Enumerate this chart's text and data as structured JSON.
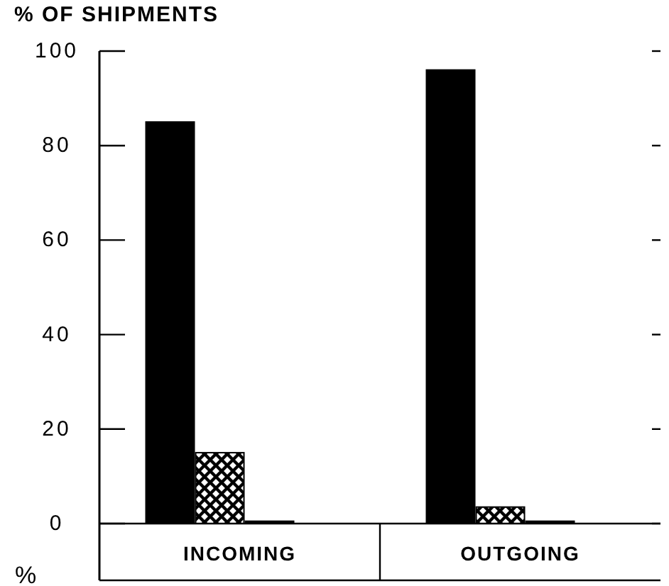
{
  "chart_data": {
    "type": "bar",
    "title": "% OF SHIPMENTS",
    "categories": [
      "INCOMING",
      "OUTGOING"
    ],
    "series": [
      {
        "color": "#000000",
        "values": [
          85,
          96
        ]
      },
      {
        "color": "#000000",
        "values": [
          15,
          3.5
        ]
      },
      {
        "color": "#000000",
        "values": [
          0.5,
          0.5
        ]
      }
    ],
    "ylim": [
      0,
      100
    ],
    "yticks": [
      0,
      20,
      40,
      60,
      80,
      100
    ],
    "grid": false,
    "annotations": [
      "%"
    ]
  }
}
